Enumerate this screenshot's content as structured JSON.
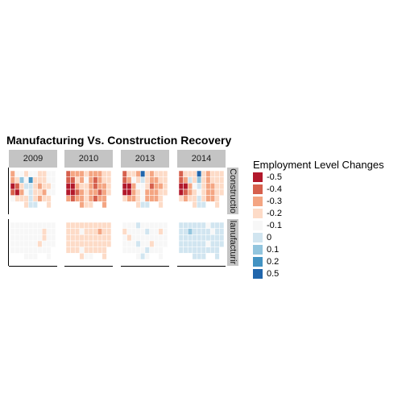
{
  "chart_data": {
    "type": "choropleth-map-facets",
    "title": "Manufacturing Vs. Construction Recovery",
    "column_facets": [
      "2009",
      "2010",
      "2013",
      "2014"
    ],
    "row_facets": [
      "Constructio",
      "lanufacturir"
    ],
    "legend": {
      "title": "Employment Level Changes",
      "placement": "right",
      "entries": [
        {
          "label": "-0.5",
          "color": "#b2182b"
        },
        {
          "label": "-0.4",
          "color": "#d6604d"
        },
        {
          "label": "-0.3",
          "color": "#f4a582"
        },
        {
          "label": "-0.2",
          "color": "#fddbc7"
        },
        {
          "label": "-0.1",
          "color": "#f7f7f7"
        },
        {
          "label": "0",
          "color": "#d1e5f0"
        },
        {
          "label": "0.1",
          "color": "#92c5de"
        },
        {
          "label": "0.2",
          "color": "#4393c3"
        },
        {
          "label": "0.5",
          "color": "#2166ac"
        }
      ]
    },
    "map_grid": {
      "columns": 10,
      "rows": 6
    },
    "panels": [
      {
        "row": "Constructio",
        "column": "2009",
        "cells": [
          [
            2,
            4,
            4,
            3,
            4,
            4,
            3,
            3,
            4,
            4
          ],
          [
            2,
            3,
            6,
            4,
            7,
            3,
            3,
            3,
            4,
            4
          ],
          [
            0,
            1,
            3,
            5,
            5,
            3,
            2,
            3,
            3,
            4
          ],
          [
            1,
            0,
            2,
            4,
            5,
            3,
            3,
            2,
            4,
            4
          ],
          [
            4,
            3,
            3,
            3,
            5,
            3,
            2,
            3,
            3,
            9
          ],
          [
            9,
            9,
            9,
            3,
            5,
            5,
            9,
            9,
            3,
            9
          ]
        ]
      },
      {
        "row": "Constructio",
        "column": "2010",
        "cells": [
          [
            1,
            2,
            2,
            2,
            3,
            2,
            2,
            2,
            3,
            3
          ],
          [
            1,
            1,
            3,
            2,
            4,
            2,
            1,
            2,
            3,
            3
          ],
          [
            0,
            0,
            2,
            3,
            3,
            2,
            1,
            2,
            2,
            3
          ],
          [
            0,
            0,
            1,
            2,
            3,
            2,
            2,
            1,
            2,
            3
          ],
          [
            2,
            1,
            2,
            2,
            3,
            2,
            1,
            2,
            2,
            9
          ],
          [
            9,
            9,
            9,
            2,
            3,
            3,
            9,
            9,
            2,
            9
          ]
        ]
      },
      {
        "row": "Constructio",
        "column": "2013",
        "cells": [
          [
            1,
            3,
            3,
            2,
            8,
            3,
            2,
            3,
            3,
            3
          ],
          [
            1,
            2,
            4,
            3,
            5,
            3,
            2,
            2,
            3,
            3
          ],
          [
            0,
            0,
            2,
            4,
            4,
            3,
            1,
            2,
            2,
            3
          ],
          [
            0,
            0,
            2,
            3,
            4,
            2,
            2,
            2,
            3,
            3
          ],
          [
            3,
            2,
            2,
            3,
            4,
            2,
            2,
            2,
            3,
            9
          ],
          [
            9,
            9,
            9,
            3,
            5,
            5,
            9,
            9,
            3,
            9
          ]
        ]
      },
      {
        "row": "Constructio",
        "column": "2014",
        "cells": [
          [
            1,
            3,
            3,
            3,
            8,
            3,
            2,
            3,
            3,
            3
          ],
          [
            1,
            2,
            5,
            3,
            6,
            3,
            2,
            3,
            3,
            3
          ],
          [
            0,
            0,
            2,
            4,
            5,
            3,
            2,
            2,
            3,
            3
          ],
          [
            0,
            1,
            2,
            3,
            4,
            3,
            2,
            2,
            3,
            3
          ],
          [
            3,
            2,
            3,
            3,
            5,
            3,
            2,
            2,
            3,
            9
          ],
          [
            9,
            9,
            9,
            3,
            5,
            5,
            9,
            9,
            3,
            9
          ]
        ]
      },
      {
        "row": "lanufacturir",
        "column": "2009",
        "cells": [
          [
            4,
            4,
            4,
            4,
            4,
            4,
            4,
            4,
            4,
            4
          ],
          [
            4,
            4,
            4,
            4,
            4,
            4,
            4,
            3,
            4,
            4
          ],
          [
            4,
            4,
            4,
            4,
            4,
            4,
            4,
            3,
            4,
            4
          ],
          [
            4,
            4,
            4,
            4,
            4,
            4,
            3,
            4,
            4,
            4
          ],
          [
            4,
            4,
            4,
            4,
            4,
            4,
            4,
            4,
            4,
            9
          ],
          [
            9,
            9,
            9,
            4,
            4,
            4,
            9,
            9,
            4,
            9
          ]
        ]
      },
      {
        "row": "lanufacturir",
        "column": "2010",
        "cells": [
          [
            3,
            3,
            3,
            3,
            3,
            3,
            3,
            3,
            3,
            3
          ],
          [
            3,
            3,
            3,
            4,
            3,
            3,
            3,
            2,
            3,
            3
          ],
          [
            3,
            3,
            3,
            3,
            3,
            3,
            3,
            3,
            3,
            3
          ],
          [
            3,
            3,
            3,
            3,
            3,
            3,
            3,
            3,
            3,
            3
          ],
          [
            3,
            3,
            3,
            4,
            3,
            3,
            3,
            3,
            3,
            9
          ],
          [
            9,
            9,
            9,
            3,
            4,
            4,
            9,
            9,
            3,
            9
          ]
        ]
      },
      {
        "row": "lanufacturir",
        "column": "2013",
        "cells": [
          [
            4,
            4,
            4,
            5,
            4,
            4,
            4,
            4,
            4,
            4
          ],
          [
            3,
            4,
            4,
            4,
            4,
            5,
            4,
            4,
            3,
            4
          ],
          [
            4,
            3,
            4,
            4,
            4,
            4,
            4,
            4,
            4,
            4
          ],
          [
            4,
            4,
            4,
            5,
            4,
            4,
            3,
            4,
            4,
            4
          ],
          [
            4,
            4,
            4,
            4,
            4,
            5,
            4,
            4,
            4,
            9
          ],
          [
            9,
            9,
            9,
            4,
            5,
            4,
            9,
            9,
            4,
            9
          ]
        ]
      },
      {
        "row": "lanufacturir",
        "column": "2014",
        "cells": [
          [
            5,
            5,
            5,
            5,
            5,
            5,
            4,
            5,
            5,
            5
          ],
          [
            5,
            5,
            6,
            5,
            5,
            5,
            5,
            4,
            5,
            5
          ],
          [
            5,
            5,
            5,
            5,
            5,
            5,
            5,
            5,
            5,
            5
          ],
          [
            5,
            5,
            5,
            5,
            5,
            5,
            4,
            5,
            5,
            5
          ],
          [
            5,
            5,
            5,
            5,
            5,
            5,
            5,
            5,
            5,
            9
          ],
          [
            9,
            9,
            9,
            5,
            5,
            5,
            9,
            9,
            5,
            9
          ]
        ]
      }
    ]
  }
}
